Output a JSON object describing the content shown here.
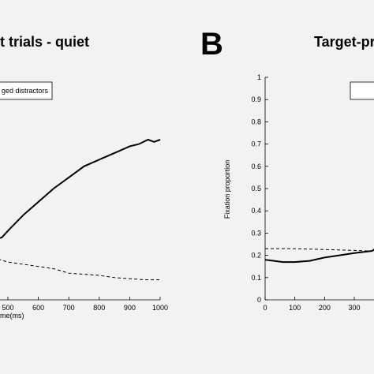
{
  "chart_data": [
    {
      "type": "line",
      "panel_label": "",
      "title": "t trials - quiet",
      "xlabel": "me(ms)",
      "ylabel": "",
      "x_ticks": [
        "500",
        "600",
        "700",
        "800",
        "900",
        "1000"
      ],
      "xlim": [
        450,
        1000
      ],
      "ylim": [
        0,
        1
      ],
      "legend": {
        "label": "ged distractors",
        "position": "top-left"
      },
      "series": [
        {
          "style": "solid",
          "x": [
            450,
            480,
            500,
            550,
            600,
            650,
            700,
            750,
            800,
            850,
            900,
            930,
            960,
            980,
            1000
          ],
          "y": [
            0.27,
            0.28,
            0.31,
            0.38,
            0.44,
            0.5,
            0.55,
            0.6,
            0.63,
            0.66,
            0.69,
            0.7,
            0.72,
            0.71,
            0.72
          ]
        },
        {
          "style": "dashed",
          "x": [
            450,
            500,
            550,
            600,
            650,
            700,
            750,
            800,
            850,
            900,
            950,
            1000
          ],
          "y": [
            0.19,
            0.17,
            0.16,
            0.15,
            0.14,
            0.12,
            0.115,
            0.11,
            0.1,
            0.095,
            0.09,
            0.09
          ]
        }
      ]
    },
    {
      "type": "line",
      "panel_label": "B",
      "title": "Target-pr",
      "xlabel": "",
      "ylabel": "Fixation proportion",
      "y_ticks": [
        "0",
        "0.1",
        "0.2",
        "0.3",
        "0.4",
        "0.5",
        "0.6",
        "0.7",
        "0.8",
        "0.9",
        "1"
      ],
      "x_ticks": [
        "0",
        "100",
        "200",
        "300"
      ],
      "xlim": [
        0,
        380
      ],
      "ylim": [
        0,
        1
      ],
      "series": [
        {
          "style": "solid",
          "x": [
            0,
            30,
            60,
            100,
            150,
            200,
            250,
            300,
            330,
            360,
            380
          ],
          "y": [
            0.18,
            0.175,
            0.17,
            0.17,
            0.175,
            0.19,
            0.2,
            0.21,
            0.215,
            0.22,
            0.24
          ]
        },
        {
          "style": "dashed",
          "x": [
            0,
            50,
            100,
            150,
            200,
            250,
            300,
            350,
            380
          ],
          "y": [
            0.23,
            0.23,
            0.23,
            0.228,
            0.226,
            0.224,
            0.222,
            0.22,
            0.22
          ]
        }
      ]
    }
  ],
  "colors": {
    "background": "#f2f2f2",
    "ink": "#000000"
  }
}
